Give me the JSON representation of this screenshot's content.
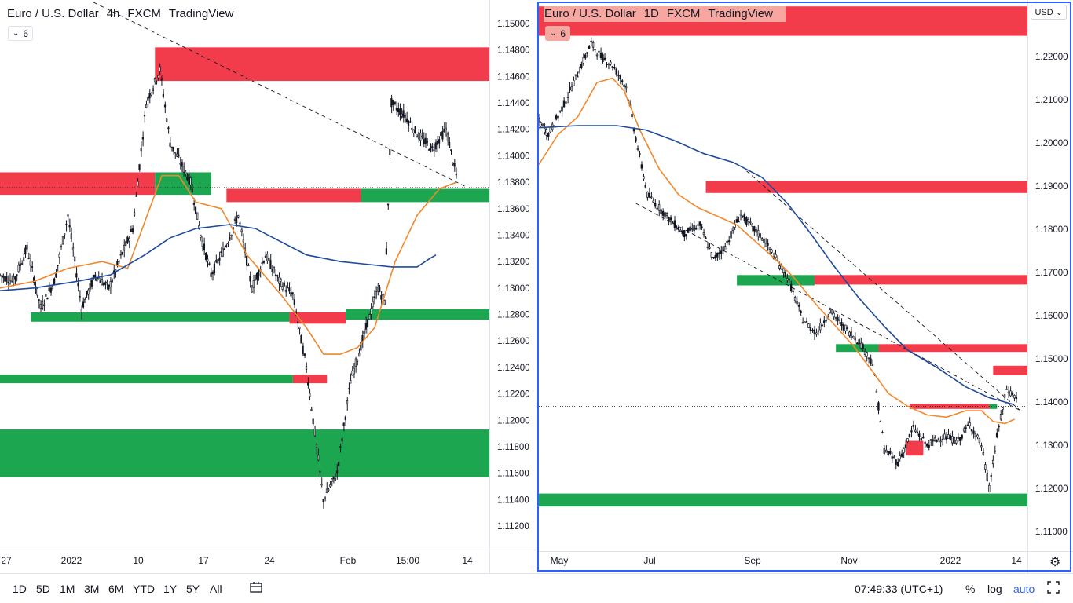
{
  "toolbar": {
    "timeframes": [
      "1D",
      "5D",
      "1M",
      "3M",
      "6M",
      "YTD",
      "1Y",
      "5Y",
      "All"
    ],
    "clock": "07:49:33 (UTC+1)",
    "percent_label": "%",
    "log_label": "log",
    "auto_label": "auto",
    "icons": [
      "date-range-icon",
      "fullscreen-icon"
    ]
  },
  "colors": {
    "candle": "#131722",
    "ema": "#f0882c",
    "sma": "#1e4a9e",
    "supply": "#f23645",
    "demand": "#16a34a"
  },
  "chart_data": [
    {
      "type": "candlestick",
      "legend": {
        "symbol": "Euro / U.S. Dollar",
        "interval": "4h",
        "source": "FXCM",
        "platform": "TradingView"
      },
      "indicator_count": "6",
      "price_axis": {
        "ticks": [
          "1.15000",
          "1.14800",
          "1.14600",
          "1.14400",
          "1.14200",
          "1.14000",
          "1.13800",
          "1.13600",
          "1.13400",
          "1.13200",
          "1.13000",
          "1.12800",
          "1.12600",
          "1.12400",
          "1.12200",
          "1.12000",
          "1.11800",
          "1.11600",
          "1.11400",
          "1.11200"
        ],
        "ylim": [
          1.11,
          1.151
        ]
      },
      "time_axis": {
        "ticks": [
          "27",
          "2022",
          "10",
          "17",
          "24",
          "Feb",
          "15:00",
          "14"
        ]
      },
      "series": [
        {
          "name": "price",
          "values": [
            [
              0,
              1.131
            ],
            [
              8,
              1.1305
            ],
            [
              16,
              1.133
            ],
            [
              24,
              1.1285
            ],
            [
              32,
              1.1305
            ],
            [
              40,
              1.1355
            ],
            [
              48,
              1.1285
            ],
            [
              56,
              1.131
            ],
            [
              64,
              1.13
            ],
            [
              70,
              1.132
            ],
            [
              78,
              1.1345
            ],
            [
              86,
              1.144
            ],
            [
              94,
              1.1465
            ],
            [
              100,
              1.141
            ],
            [
              106,
              1.1395
            ],
            [
              112,
              1.138
            ],
            [
              118,
              1.134
            ],
            [
              124,
              1.131
            ],
            [
              132,
              1.133
            ],
            [
              140,
              1.1355
            ],
            [
              148,
              1.13
            ],
            [
              156,
              1.1325
            ],
            [
              164,
              1.1305
            ],
            [
              172,
              1.1295
            ],
            [
              180,
              1.124
            ],
            [
              190,
              1.114
            ],
            [
              198,
              1.116
            ],
            [
              206,
              1.123
            ],
            [
              214,
              1.1265
            ],
            [
              222,
              1.13
            ],
            [
              226,
              1.129
            ],
            [
              230,
              1.144
            ],
            [
              238,
              1.143
            ],
            [
              246,
              1.1415
            ],
            [
              254,
              1.1405
            ],
            [
              262,
              1.142
            ],
            [
              268,
              1.1385
            ]
          ]
        },
        {
          "name": "",
          "kind": "ema",
          "values": [
            [
              0,
              1.13
            ],
            [
              20,
              1.1305
            ],
            [
              40,
              1.1315
            ],
            [
              60,
              1.132
            ],
            [
              75,
              1.1315
            ],
            [
              85,
              1.135
            ],
            [
              95,
              1.1385
            ],
            [
              105,
              1.1385
            ],
            [
              115,
              1.1365
            ],
            [
              130,
              1.136
            ],
            [
              145,
              1.1325
            ],
            [
              165,
              1.1295
            ],
            [
              180,
              1.127
            ],
            [
              190,
              1.125
            ],
            [
              200,
              1.125
            ],
            [
              210,
              1.1255
            ],
            [
              220,
              1.127
            ],
            [
              232,
              1.132
            ],
            [
              245,
              1.1355
            ],
            [
              258,
              1.1375
            ],
            [
              268,
              1.138
            ]
          ]
        },
        {
          "name": "",
          "kind": "sma",
          "values": [
            [
              0,
              1.1298
            ],
            [
              20,
              1.13
            ],
            [
              45,
              1.1305
            ],
            [
              65,
              1.131
            ],
            [
              85,
              1.1325
            ],
            [
              100,
              1.1338
            ],
            [
              115,
              1.1345
            ],
            [
              135,
              1.1348
            ],
            [
              150,
              1.1345
            ],
            [
              165,
              1.1335
            ],
            [
              180,
              1.1325
            ],
            [
              200,
              1.132
            ],
            [
              215,
              1.1318
            ],
            [
              230,
              1.1316
            ],
            [
              245,
              1.1316
            ],
            [
              252,
              1.1322
            ],
            [
              256,
              1.1325
            ]
          ]
        }
      ],
      "zones": [
        {
          "kind": "supply",
          "from": 1.14566,
          "to": 1.1482,
          "x_start": 91
        },
        {
          "kind": "supply",
          "from": 1.13705,
          "to": 1.13875,
          "x_start": 0,
          "x_end": 91
        },
        {
          "kind": "demand",
          "from": 1.13705,
          "to": 1.13875,
          "x_start": 91,
          "x_end": 124
        },
        {
          "kind": "supply",
          "from": 1.1365,
          "to": 1.1375,
          "x_start": 133,
          "x_end": 212
        },
        {
          "kind": "demand",
          "from": 1.1365,
          "to": 1.1375,
          "x_start": 212
        },
        {
          "kind": "demand",
          "from": 1.12745,
          "to": 1.12815,
          "x_start": 18,
          "x_end": 170
        },
        {
          "kind": "supply",
          "from": 1.1273,
          "to": 1.12815,
          "x_start": 170,
          "x_end": 203
        },
        {
          "kind": "demand",
          "from": 1.1276,
          "to": 1.1284,
          "x_start": 203
        },
        {
          "kind": "demand",
          "from": 1.1228,
          "to": 1.12345,
          "x_start": 0,
          "x_end": 172
        },
        {
          "kind": "supply",
          "from": 1.1228,
          "to": 1.12345,
          "x_start": 172,
          "x_end": 192
        },
        {
          "kind": "demand",
          "from": 1.1157,
          "to": 1.1193,
          "x_start": 0
        }
      ],
      "trendline": {
        "from": [
          55,
          1.1516
        ],
        "to": [
          273,
          1.1377
        ]
      },
      "last_price_line": 1.1376
    },
    {
      "type": "candlestick",
      "legend": {
        "symbol": "Euro / U.S. Dollar",
        "interval": "1D",
        "source": "FXCM",
        "platform": "TradingView"
      },
      "indicator_count": "6",
      "currency": "USD",
      "price_axis": {
        "ticks": [
          "1.22000",
          "1.21000",
          "1.20000",
          "1.19000",
          "1.18000",
          "1.17000",
          "1.16000",
          "1.15000",
          "1.14000",
          "1.13000",
          "1.12000",
          "1.11000"
        ],
        "ylim": [
          1.1055,
          1.2305
        ]
      },
      "time_axis": {
        "ticks": [
          "May",
          "Jul",
          "Sep",
          "Nov",
          "2022",
          "14"
        ]
      },
      "series": [
        {
          "name": "price",
          "values": [
            [
              0,
              1.205
            ],
            [
              5,
              1.202
            ],
            [
              12,
              1.208
            ],
            [
              20,
              1.216
            ],
            [
              27,
              1.223
            ],
            [
              32,
              1.22
            ],
            [
              38,
              1.218
            ],
            [
              45,
              1.213
            ],
            [
              50,
              1.201
            ],
            [
              56,
              1.188
            ],
            [
              62,
              1.185
            ],
            [
              68,
              1.182
            ],
            [
              75,
              1.179
            ],
            [
              83,
              1.181
            ],
            [
              90,
              1.173
            ],
            [
              96,
              1.176
            ],
            [
              104,
              1.1835
            ],
            [
              110,
              1.1805
            ],
            [
              115,
              1.178
            ],
            [
              121,
              1.174
            ],
            [
              128,
              1.169
            ],
            [
              136,
              1.159
            ],
            [
              143,
              1.156
            ],
            [
              150,
              1.161
            ],
            [
              157,
              1.1575
            ],
            [
              165,
              1.154
            ],
            [
              172,
              1.149
            ],
            [
              178,
              1.129
            ],
            [
              185,
              1.126
            ],
            [
              193,
              1.134
            ],
            [
              200,
              1.13
            ],
            [
              208,
              1.132
            ],
            [
              216,
              1.131
            ],
            [
              222,
              1.135
            ],
            [
              228,
              1.13
            ],
            [
              232,
              1.12
            ],
            [
              236,
              1.132
            ],
            [
              241,
              1.143
            ],
            [
              246,
              1.141
            ]
          ]
        },
        {
          "name": "",
          "kind": "ema",
          "values": [
            [
              0,
              1.195
            ],
            [
              10,
              1.202
            ],
            [
              20,
              1.206
            ],
            [
              30,
              1.214
            ],
            [
              38,
              1.215
            ],
            [
              44,
              1.212
            ],
            [
              52,
              1.203
            ],
            [
              62,
              1.194
            ],
            [
              72,
              1.188
            ],
            [
              82,
              1.185
            ],
            [
              92,
              1.183
            ],
            [
              102,
              1.181
            ],
            [
              112,
              1.177
            ],
            [
              122,
              1.173
            ],
            [
              132,
              1.1685
            ],
            [
              142,
              1.163
            ],
            [
              152,
              1.158
            ],
            [
              162,
              1.153
            ],
            [
              172,
              1.147
            ],
            [
              180,
              1.142
            ],
            [
              190,
              1.139
            ],
            [
              200,
              1.137
            ],
            [
              210,
              1.1365
            ],
            [
              220,
              1.138
            ],
            [
              228,
              1.138
            ],
            [
              234,
              1.1355
            ],
            [
              240,
              1.135
            ],
            [
              245,
              1.136
            ]
          ]
        },
        {
          "name": "",
          "kind": "sma",
          "values": [
            [
              0,
              1.2035
            ],
            [
              20,
              1.204
            ],
            [
              40,
              1.204
            ],
            [
              55,
              1.203
            ],
            [
              70,
              1.2005
            ],
            [
              85,
              1.1975
            ],
            [
              100,
              1.1955
            ],
            [
              115,
              1.192
            ],
            [
              128,
              1.186
            ],
            [
              140,
              1.179
            ],
            [
              152,
              1.1715
            ],
            [
              165,
              1.164
            ],
            [
              178,
              1.1575
            ],
            [
              190,
              1.152
            ],
            [
              205,
              1.148
            ],
            [
              220,
              1.1435
            ],
            [
              232,
              1.141
            ],
            [
              240,
              1.14
            ],
            [
              244,
              1.1395
            ]
          ]
        }
      ],
      "zones": [
        {
          "kind": "supply",
          "from": 1.2248,
          "to": 1.2316,
          "x_start": 0
        },
        {
          "kind": "supply",
          "from": 1.1884,
          "to": 1.1912,
          "x_start": 86
        },
        {
          "kind": "demand",
          "from": 1.167,
          "to": 1.1694,
          "x_start": 102,
          "x_end": 142
        },
        {
          "kind": "supply",
          "from": 1.1672,
          "to": 1.1694,
          "x_start": 142
        },
        {
          "kind": "demand",
          "from": 1.1516,
          "to": 1.1534,
          "x_start": 153,
          "x_end": 175
        },
        {
          "kind": "supply",
          "from": 1.1516,
          "to": 1.1534,
          "x_start": 175
        },
        {
          "kind": "supply",
          "from": 1.1462,
          "to": 1.1484,
          "x_start": 234
        },
        {
          "kind": "supply",
          "from": 1.1384,
          "to": 1.1396,
          "x_start": 191,
          "x_end": 232
        },
        {
          "kind": "demand",
          "from": 1.1384,
          "to": 1.1396,
          "x_start": 232,
          "x_end": 236
        },
        {
          "kind": "supply",
          "from": 1.1276,
          "to": 1.131,
          "x_start": 189,
          "x_end": 198
        },
        {
          "kind": "demand",
          "from": 1.1158,
          "to": 1.1188,
          "x_start": 0
        }
      ],
      "trendlines": [
        {
          "from": [
            50,
            1.186
          ],
          "to": [
            248,
            1.138
          ]
        },
        {
          "from": [
            107,
            1.1935
          ],
          "to": [
            248,
            1.138
          ]
        }
      ],
      "last_price_line": 1.139
    }
  ]
}
